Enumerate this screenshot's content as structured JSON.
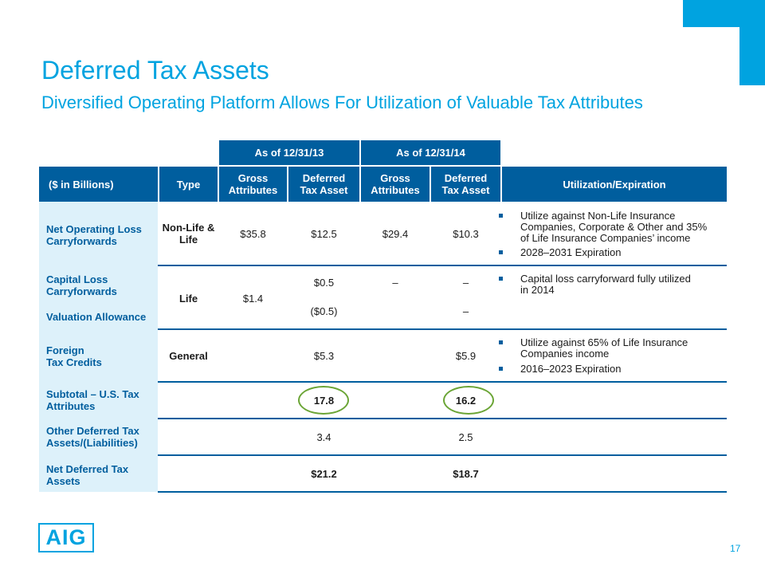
{
  "title": "Deferred Tax Assets",
  "subtitle": "Diversified Operating Platform Allows For Utilization of Valuable Tax Attributes",
  "periods": [
    "As of 12/31/13",
    "As of 12/31/14"
  ],
  "columns": {
    "label": "($ in Billions)",
    "type": "Type",
    "gross_13": "Gross Attributes",
    "deferred_13": "Deferred Tax Asset",
    "gross_14": "Gross Attributes",
    "deferred_14": "Deferred Tax Asset",
    "utilization": "Utilization/Expiration"
  },
  "rows": {
    "nol": {
      "label": "Net Operating Loss Carryforwards",
      "type": "Non-Life & Life",
      "gross_13": "$35.8",
      "deferred_13": "$12.5",
      "gross_14": "$29.4",
      "deferred_14": "$10.3",
      "bullets": [
        "Utilize against Non-Life Insurance Companies, Corporate & Other and 35% of Life Insurance Companies’ income",
        "2028–2031 Expiration"
      ]
    },
    "capital_loss": {
      "label": "Capital Loss Carryforwards",
      "type": "Life",
      "gross_13": "$1.4",
      "deferred_13": "$0.5",
      "gross_14": "–",
      "deferred_14": "–",
      "bullets": [
        "Capital loss carryforward fully utilized in 2014"
      ]
    },
    "valuation": {
      "label": "Valuation Allowance",
      "deferred_13": "($0.5)",
      "deferred_14": "–"
    },
    "foreign": {
      "label": "Foreign Tax Credits",
      "type": "General",
      "deferred_13": "$5.3",
      "deferred_14": "$5.9",
      "bullets": [
        "Utilize against 65% of Life Insurance Companies income",
        "2016–2023 Expiration"
      ]
    },
    "subtotal": {
      "label": "Subtotal – U.S. Tax Attributes",
      "deferred_13": "17.8",
      "deferred_14": "16.2"
    },
    "other": {
      "label": "Other Deferred Tax Assets/(Liabilities)",
      "deferred_13": "3.4",
      "deferred_14": "2.5"
    },
    "net": {
      "label": "Net Deferred Tax Assets",
      "deferred_13": "$21.2",
      "deferred_14": "$18.7"
    }
  },
  "colors": {
    "accent": "#00a3e0",
    "header": "#005e9e",
    "label_bg": "#ddf1fa",
    "ring": "#6ba536"
  },
  "logo": "AIG",
  "page_number": "17"
}
